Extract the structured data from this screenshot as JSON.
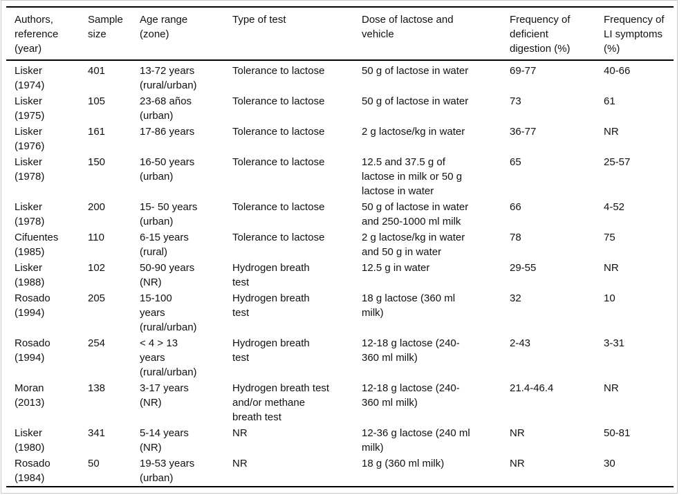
{
  "colors": {
    "rule": "#000000",
    "frame_border": "#c8c8c8",
    "text": "#111111",
    "background": "#ffffff"
  },
  "table": {
    "columns": [
      "Authors,\nreference\n(year)",
      "Sample\nsize",
      "Age range\n(zone)",
      "Type of test",
      "Dose of lactose and\nvehicle",
      "Frequency of\ndeficient\ndigestion (%)",
      "Frequency of\nLI symptoms\n(%)"
    ],
    "rows": [
      {
        "authors": "Lisker\n(1974)",
        "sample_size": "401",
        "age_range": "13-72 years\n(rural/urban)",
        "test_type": "Tolerance to lactose",
        "dose": "50 g of lactose in water",
        "freq_deficient_digestion": "69-77",
        "freq_li_symptoms": "40-66"
      },
      {
        "authors": "Lisker\n(1975)",
        "sample_size": "105",
        "age_range": "23-68 años\n(urban)",
        "test_type": "Tolerance to lactose",
        "dose": "50 g of lactose in water",
        "freq_deficient_digestion": "73",
        "freq_li_symptoms": "61"
      },
      {
        "authors": "Lisker\n(1976)",
        "sample_size": "161",
        "age_range": "17-86 years",
        "test_type": "Tolerance to lactose",
        "dose": "2 g lactose/kg in water",
        "freq_deficient_digestion": "36-77",
        "freq_li_symptoms": "NR"
      },
      {
        "authors": "Lisker\n(1978)",
        "sample_size": "150",
        "age_range": "16-50 years\n(urban)",
        "test_type": "Tolerance to lactose",
        "dose": "12.5 and 37.5 g of\nlactose in milk or 50 g\nlactose in water",
        "freq_deficient_digestion": "65",
        "freq_li_symptoms": "25-57"
      },
      {
        "authors": "Lisker\n(1978)",
        "sample_size": "200",
        "age_range": "15- 50 years\n(urban)",
        "test_type": "Tolerance to lactose",
        "dose": "50 g of lactose in water\nand 250-1000 ml milk",
        "freq_deficient_digestion": "66",
        "freq_li_symptoms": "4-52"
      },
      {
        "authors": "Cifuentes\n(1985)",
        "sample_size": "110",
        "age_range": "6-15 years\n(rural)",
        "test_type": "Tolerance to lactose",
        "dose": "2 g lactose/kg in water\nand 50 g in water",
        "freq_deficient_digestion": "78",
        "freq_li_symptoms": "75"
      },
      {
        "authors": "Lisker\n(1988)",
        "sample_size": "102",
        "age_range": "50-90 years\n(NR)",
        "test_type": "Hydrogen breath\ntest",
        "dose": "12.5 g in water",
        "freq_deficient_digestion": "29-55",
        "freq_li_symptoms": "NR"
      },
      {
        "authors": "Rosado\n(1994)",
        "sample_size": "205",
        "age_range": "15-100\nyears\n(rural/urban)",
        "test_type": "Hydrogen breath\ntest",
        "dose": "18 g lactose (360 ml\nmilk)",
        "freq_deficient_digestion": "32",
        "freq_li_symptoms": "10"
      },
      {
        "authors": "Rosado\n(1994)",
        "sample_size": "254",
        "age_range": "< 4 > 13\nyears\n(rural/urban)",
        "test_type": "Hydrogen breath\ntest",
        "dose": "12-18 g lactose (240-\n360 ml milk)",
        "freq_deficient_digestion": "2-43",
        "freq_li_symptoms": "3-31"
      },
      {
        "authors": "Moran\n(2013)",
        "sample_size": "138",
        "age_range": "3-17 years\n(NR)",
        "test_type": "Hydrogen breath test\nand/or methane\nbreath test",
        "dose": "12-18 g lactose (240-\n360 ml milk)",
        "freq_deficient_digestion": "21.4-46.4",
        "freq_li_symptoms": "NR"
      },
      {
        "authors": "Lisker\n(1980)",
        "sample_size": "341",
        "age_range": "5-14 years\n(NR)",
        "test_type": "NR",
        "dose": "12-36 g lactose (240 ml\nmilk)",
        "freq_deficient_digestion": "NR",
        "freq_li_symptoms": "50-81"
      },
      {
        "authors": "Rosado\n(1984)",
        "sample_size": "50",
        "age_range": "19-53 years\n(urban)",
        "test_type": "NR",
        "dose": "18 g (360 ml milk)",
        "freq_deficient_digestion": "NR",
        "freq_li_symptoms": "30"
      }
    ]
  }
}
